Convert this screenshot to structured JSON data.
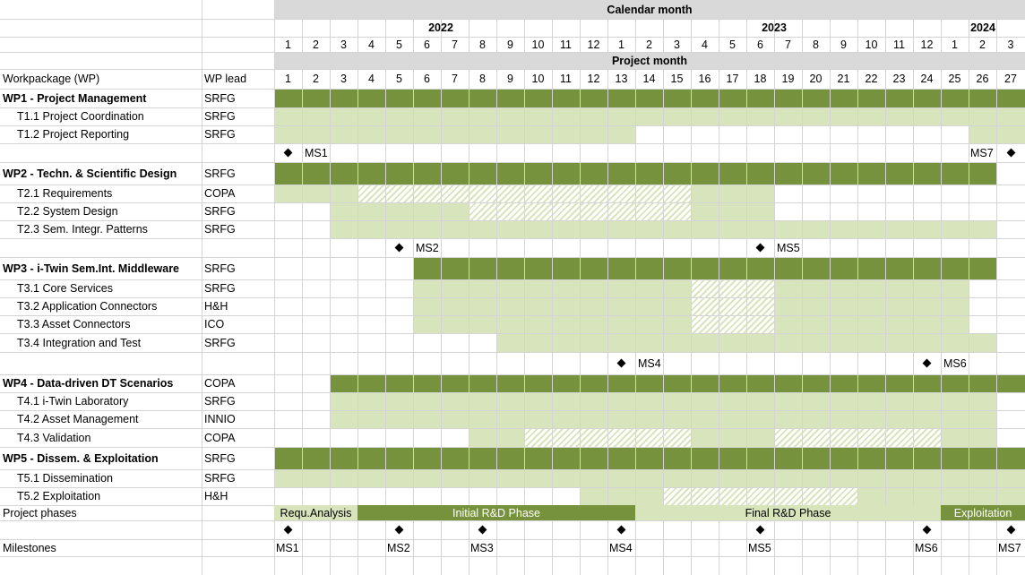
{
  "header": {
    "calendar_title": "Calendar month",
    "project_title": "Project month",
    "years": [
      {
        "label": "2022",
        "from": 1,
        "to": 12
      },
      {
        "label": "2023",
        "from": 13,
        "to": 24
      },
      {
        "label": "2024",
        "from": 25,
        "to": 27
      }
    ],
    "calendar_months": [
      "1",
      "2",
      "3",
      "4",
      "5",
      "6",
      "7",
      "8",
      "9",
      "10",
      "11",
      "12",
      "1",
      "2",
      "3",
      "4",
      "5",
      "6",
      "7",
      "8",
      "9",
      "10",
      "11",
      "12",
      "1",
      "2",
      "3"
    ],
    "project_months": [
      "1",
      "2",
      "3",
      "4",
      "5",
      "6",
      "7",
      "8",
      "9",
      "10",
      "11",
      "12",
      "13",
      "14",
      "15",
      "16",
      "17",
      "18",
      "19",
      "20",
      "21",
      "22",
      "23",
      "24",
      "25",
      "26",
      "27"
    ],
    "col_wp": "Workpackage (WP)",
    "col_lead": "WP lead"
  },
  "rows": [
    {
      "kind": "wp",
      "name": "WP1 - Project Management",
      "lead": "SRFG",
      "bars": [
        {
          "start": 1,
          "end": 27,
          "style": "wp"
        }
      ]
    },
    {
      "kind": "task",
      "name": "T1.1 Project Coordination",
      "lead": "SRFG",
      "bars": [
        {
          "start": 1,
          "end": 27,
          "style": "task"
        }
      ]
    },
    {
      "kind": "task",
      "name": "T1.2 Project Reporting",
      "lead": "SRFG",
      "bars": [
        {
          "start": 1,
          "end": 11,
          "style": "task"
        },
        {
          "start": 12,
          "end": 13,
          "style": "task"
        },
        {
          "start": 26,
          "end": 27,
          "style": "task"
        }
      ]
    },
    {
      "kind": "ms",
      "milestones": [
        {
          "month": 1,
          "label": "MS1",
          "side": "right"
        },
        {
          "month": 27,
          "label": "MS7",
          "side": "left"
        }
      ]
    },
    {
      "kind": "wp",
      "name": "WP2 - Techn. & Scientific Design",
      "lead": "SRFG",
      "bars": [
        {
          "start": 1,
          "end": 26,
          "style": "wp"
        }
      ]
    },
    {
      "kind": "task",
      "name": "T2.1 Requirements",
      "lead": "COPA",
      "bars": [
        {
          "start": 1,
          "end": 3,
          "style": "task"
        },
        {
          "start": 4,
          "end": 15,
          "style": "hatch"
        },
        {
          "start": 16,
          "end": 18,
          "style": "task"
        }
      ]
    },
    {
      "kind": "task",
      "name": "T2.2 System Design",
      "lead": "SRFG",
      "bars": [
        {
          "start": 3,
          "end": 7,
          "style": "task"
        },
        {
          "start": 8,
          "end": 15,
          "style": "hatch"
        },
        {
          "start": 16,
          "end": 18,
          "style": "task"
        }
      ]
    },
    {
      "kind": "task",
      "name": "T2.3 Sem. Integr. Patterns",
      "lead": "SRFG",
      "bars": [
        {
          "start": 3,
          "end": 26,
          "style": "task"
        }
      ]
    },
    {
      "kind": "ms",
      "milestones": [
        {
          "month": 5,
          "label": "MS2",
          "side": "right"
        },
        {
          "month": 18,
          "label": "MS5",
          "side": "right"
        }
      ]
    },
    {
      "kind": "wp",
      "name": "WP3 - i-Twin Sem.Int. Middleware",
      "lead": "SRFG",
      "bars": [
        {
          "start": 6,
          "end": 26,
          "style": "wp"
        }
      ]
    },
    {
      "kind": "task",
      "name": "T3.1 Core Services",
      "lead": "SRFG",
      "bars": [
        {
          "start": 6,
          "end": 15,
          "style": "task"
        },
        {
          "start": 16,
          "end": 18,
          "style": "hatch"
        },
        {
          "start": 19,
          "end": 25,
          "style": "task"
        }
      ]
    },
    {
      "kind": "task",
      "name": "T3.2 Application Connectors",
      "lead": "H&H",
      "bars": [
        {
          "start": 6,
          "end": 15,
          "style": "task"
        },
        {
          "start": 16,
          "end": 18,
          "style": "hatch"
        },
        {
          "start": 19,
          "end": 25,
          "style": "task"
        }
      ]
    },
    {
      "kind": "task",
      "name": "T3.3 Asset Connectors",
      "lead": "ICO",
      "bars": [
        {
          "start": 6,
          "end": 15,
          "style": "task"
        },
        {
          "start": 16,
          "end": 18,
          "style": "hatch"
        },
        {
          "start": 19,
          "end": 25,
          "style": "task"
        }
      ]
    },
    {
      "kind": "task",
      "name": "T3.4 Integration and Test",
      "lead": "SRFG",
      "bars": [
        {
          "start": 9,
          "end": 26,
          "style": "task"
        }
      ]
    },
    {
      "kind": "ms",
      "milestones": [
        {
          "month": 13,
          "label": "MS4",
          "side": "right"
        },
        {
          "month": 24,
          "label": "MS6",
          "side": "right"
        }
      ]
    },
    {
      "kind": "wp",
      "name": "WP4 - Data-driven DT Scenarios",
      "lead": "COPA",
      "bars": [
        {
          "start": 3,
          "end": 27,
          "style": "wp"
        }
      ]
    },
    {
      "kind": "task",
      "name": "T4.1 i-Twin Laboratory",
      "lead": "SRFG",
      "bars": [
        {
          "start": 3,
          "end": 26,
          "style": "task"
        }
      ]
    },
    {
      "kind": "task",
      "name": "T4.2 Asset Management",
      "lead": "INNIO",
      "bars": [
        {
          "start": 3,
          "end": 26,
          "style": "task"
        }
      ]
    },
    {
      "kind": "task",
      "name": "T4.3 Validation",
      "lead": "COPA",
      "bars": [
        {
          "start": 8,
          "end": 9,
          "style": "task"
        },
        {
          "start": 10,
          "end": 15,
          "style": "hatch"
        },
        {
          "start": 16,
          "end": 18,
          "style": "task"
        },
        {
          "start": 19,
          "end": 24,
          "style": "hatch"
        },
        {
          "start": 25,
          "end": 26,
          "style": "task"
        }
      ]
    },
    {
      "kind": "wp",
      "name": "WP5 - Dissem. & Exploitation",
      "lead": "SRFG",
      "bars": [
        {
          "start": 1,
          "end": 27,
          "style": "wp"
        }
      ]
    },
    {
      "kind": "task",
      "name": "T5.1 Dissemination",
      "lead": "SRFG",
      "bars": [
        {
          "start": 1,
          "end": 27,
          "style": "task"
        }
      ]
    },
    {
      "kind": "task",
      "name": "T5.2 Exploitation",
      "lead": "H&H",
      "bars": [
        {
          "start": 12,
          "end": 14,
          "style": "task"
        },
        {
          "start": 15,
          "end": 21,
          "style": "hatch"
        },
        {
          "start": 22,
          "end": 27,
          "style": "task"
        }
      ]
    }
  ],
  "phases": {
    "label": "Project phases",
    "items": [
      {
        "label": "Requ.Analysis",
        "start": 1,
        "end": 3,
        "style": "light"
      },
      {
        "label": "Initial R&D Phase",
        "start": 4,
        "end": 13,
        "style": "dark"
      },
      {
        "label": "Final R&D Phase",
        "start": 14,
        "end": 24,
        "style": "light"
      },
      {
        "label": "Exploitation",
        "start": 25,
        "end": 27,
        "style": "dark"
      }
    ]
  },
  "milestones": {
    "label": "Milestones",
    "items": [
      {
        "label": "MS1",
        "month": 1
      },
      {
        "label": "MS2",
        "month": 5
      },
      {
        "label": "MS3",
        "month": 8
      },
      {
        "label": "MS4",
        "month": 13
      },
      {
        "label": "MS5",
        "month": 18
      },
      {
        "label": "MS6",
        "month": 24
      },
      {
        "label": "MS7",
        "month": 27
      }
    ]
  },
  "colors": {
    "wp_bar": "#76923c",
    "task_bar": "#d8e4bc",
    "header_fill": "#d9d9d9",
    "gridline": "#d4d4d4"
  }
}
